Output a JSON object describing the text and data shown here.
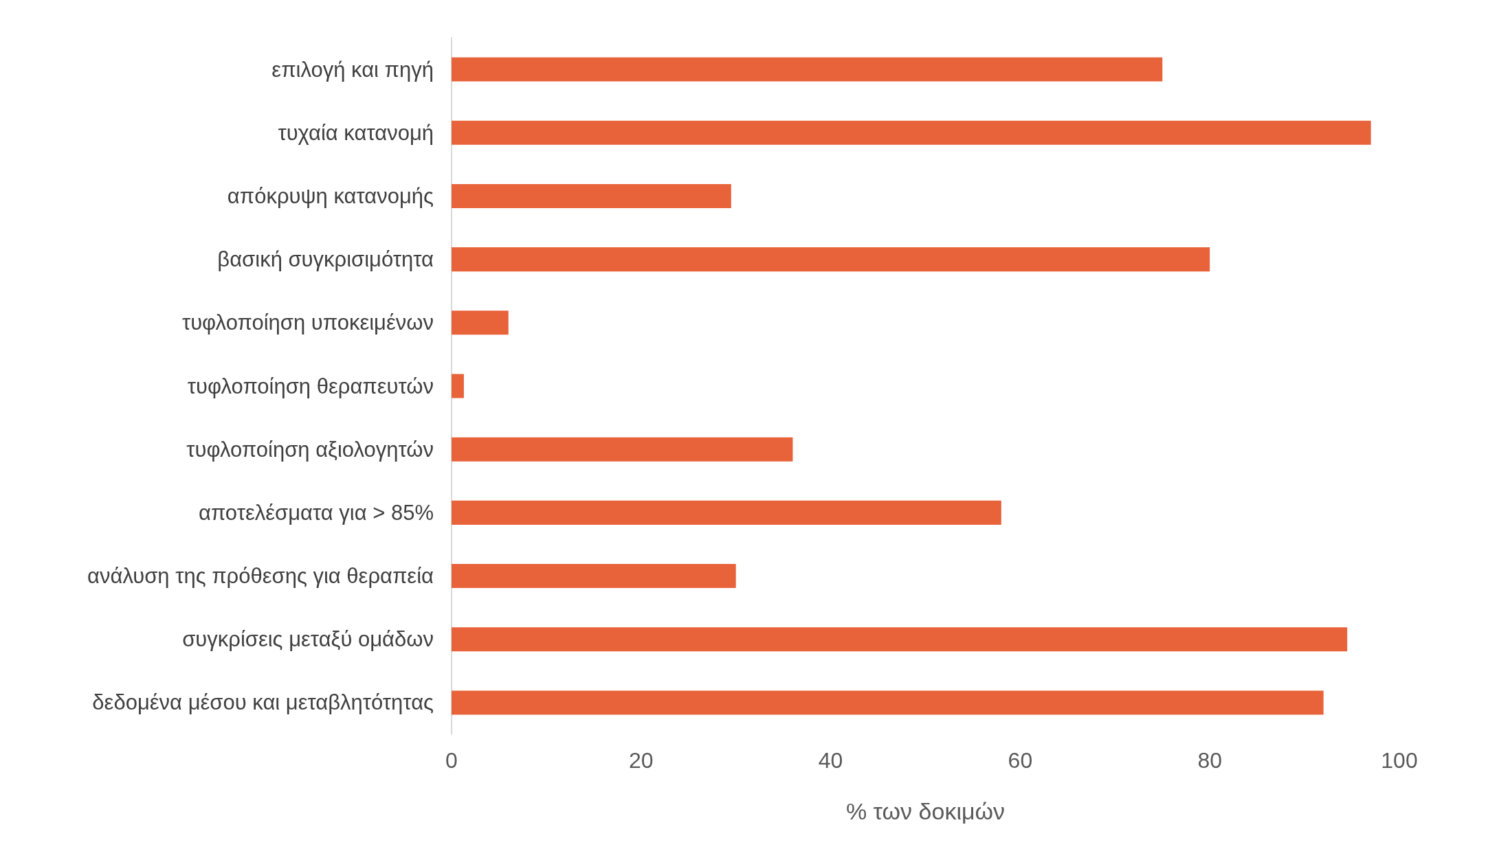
{
  "chart_data": {
    "type": "bar",
    "orientation": "horizontal",
    "xlabel": "% των δοκιμών",
    "categories": [
      "επιλογή και πηγή",
      "τυχαία κατανομή",
      "απόκρυψη κατανομής",
      "βασική συγκρισιμότητα",
      "τυφλοποίηση υποκειμένων",
      "τυφλοποίηση θεραπευτών",
      "τυφλοποίηση αξιολογητών",
      "αποτελέσματα για > 85%",
      "ανάλυση της πρόθεσης για θεραπεία",
      "συγκρίσεις μεταξύ ομάδων",
      "δεδομένα μέσου και μεταβλητότητας"
    ],
    "values": [
      75,
      97,
      29.5,
      80,
      6,
      1.3,
      36,
      58,
      30,
      94.5,
      92
    ],
    "color": "#e8623a",
    "xlim": [
      0,
      100
    ],
    "xticks": [
      0,
      20,
      40,
      60,
      80,
      100
    ]
  }
}
